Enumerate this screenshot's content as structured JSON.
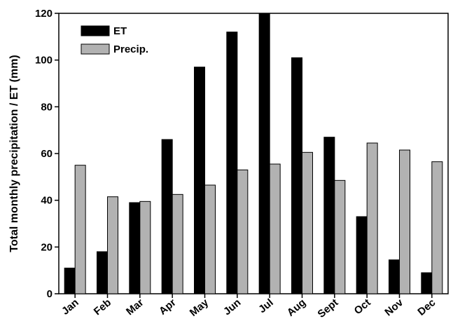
{
  "chart_data": {
    "type": "bar",
    "title": "",
    "xlabel": "",
    "ylabel": "Total monthly precipitation / ET (mm)",
    "ylim": [
      0,
      120
    ],
    "yticks": [
      0,
      20,
      40,
      60,
      80,
      100,
      120
    ],
    "categories": [
      "Jan",
      "Feb",
      "Mar",
      "Apr",
      "May",
      "Jun",
      "Jul",
      "Aug",
      "Sept",
      "Oct",
      "Nov",
      "Dec"
    ],
    "series": [
      {
        "name": "ET",
        "color": "#000000",
        "values": [
          11,
          18,
          39,
          66,
          97,
          112,
          120,
          101,
          67,
          33,
          14.5,
          9
        ]
      },
      {
        "name": "Precip.",
        "color": "#b2b2b2",
        "values": [
          55,
          41.5,
          39.5,
          42.5,
          46.5,
          53,
          55.5,
          60.5,
          48.5,
          64.5,
          61.5,
          56.5
        ]
      }
    ],
    "legend_position": "top-left",
    "grid": false
  }
}
